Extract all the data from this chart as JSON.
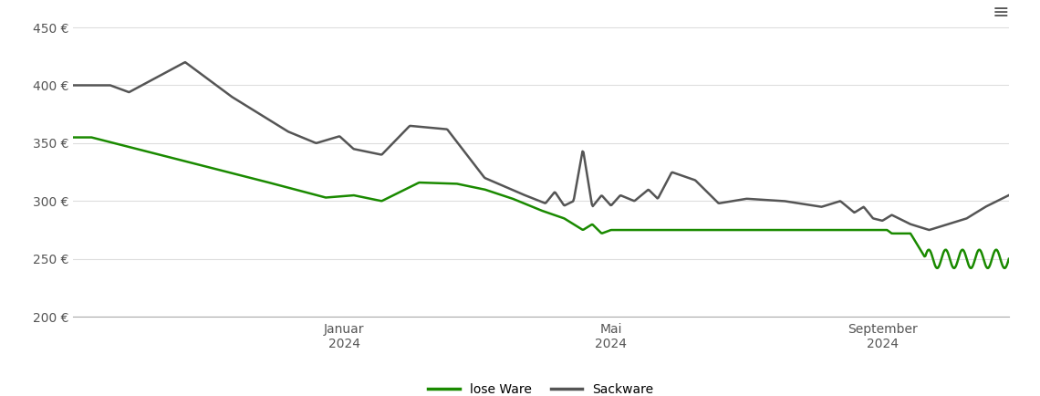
{
  "title": "",
  "ylabel": "",
  "xlabel": "",
  "ylim": [
    200,
    460
  ],
  "yticks": [
    200,
    250,
    300,
    350,
    400,
    450
  ],
  "ytick_labels": [
    "200 €",
    "250 €",
    "300 €",
    "350 €",
    "400 €",
    "450 €"
  ],
  "xtick_positions": [
    0.29,
    0.575,
    0.865
  ],
  "xtick_labels": [
    "Januar\n2024",
    "Mai\n2024",
    "September\n2024"
  ],
  "legend_labels": [
    "lose Ware",
    "Sackware"
  ],
  "legend_colors": [
    "#1a8a00",
    "#555555"
  ],
  "line_lose_color": "#1a8a00",
  "line_sack_color": "#555555",
  "background_color": "#ffffff",
  "grid_color": "#dddddd",
  "figsize": [
    11.4,
    4.34
  ],
  "dpi": 100
}
